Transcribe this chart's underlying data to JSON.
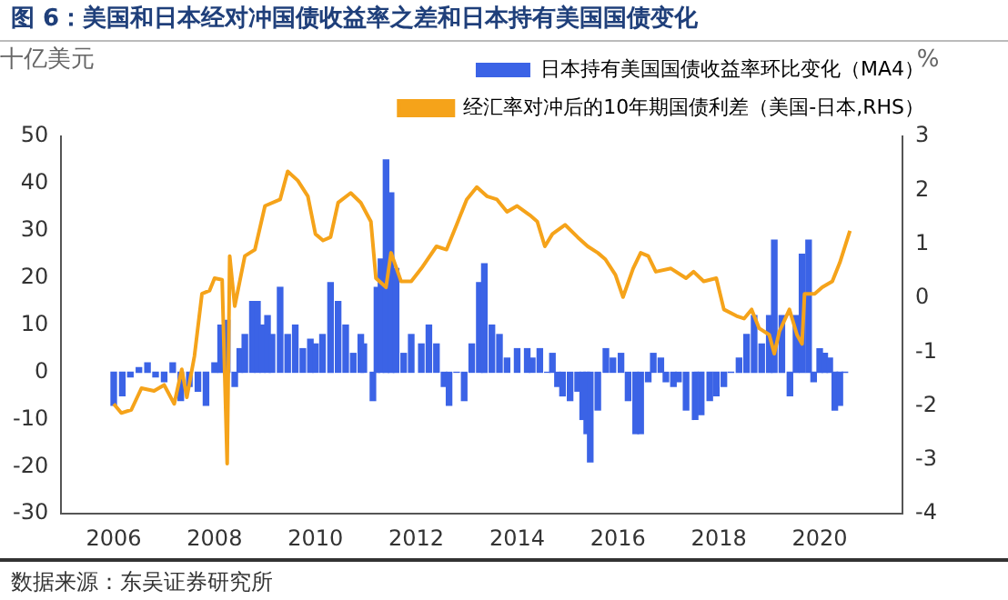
{
  "chart_data": {
    "type": "bar",
    "title": "图 6：美国和日本经对冲国债收益率之差和日本持有美国国债变化",
    "ylabel": "十亿美元",
    "y2label": "%",
    "annotations": [
      "数据来源：东吴证券研究所"
    ],
    "xlim": [
      2006,
      2020.6
    ],
    "xticks": [
      2006,
      2008,
      2010,
      2012,
      2014,
      2016,
      2018,
      2020
    ],
    "ylim": [
      -30,
      50
    ],
    "yticks": [
      -30,
      -20,
      -10,
      0,
      10,
      20,
      30,
      40,
      50
    ],
    "y2lim": [
      -4,
      3
    ],
    "y2ticks": [
      -4,
      -3,
      -2,
      -1,
      0,
      1,
      2,
      3
    ],
    "grid": false,
    "legend": "top",
    "series": [
      {
        "name": "日本持有美国国债收益率环比变化（MA4）",
        "color": "#3b63e6",
        "x": [
          2006.0,
          2006.17,
          2006.33,
          2006.5,
          2006.67,
          2006.83,
          2007.0,
          2007.17,
          2007.33,
          2007.5,
          2007.67,
          2007.83,
          2008.0,
          2008.12,
          2008.25,
          2008.4,
          2008.5,
          2008.6,
          2008.75,
          2008.85,
          2008.95,
          2009.05,
          2009.14,
          2009.3,
          2009.45,
          2009.6,
          2009.75,
          2009.9,
          2010.0,
          2010.14,
          2010.3,
          2010.45,
          2010.6,
          2010.75,
          2010.9,
          2010.96,
          2011.14,
          2011.22,
          2011.3,
          2011.4,
          2011.5,
          2011.6,
          2011.75,
          2011.9,
          2012.1,
          2012.25,
          2012.4,
          2012.55,
          2012.65,
          2012.8,
          2012.95,
          2013.1,
          2013.25,
          2013.35,
          2013.5,
          2013.65,
          2013.8,
          2014.0,
          2014.2,
          2014.3,
          2014.45,
          2014.6,
          2014.7,
          2014.8,
          2014.9,
          2015.05,
          2015.2,
          2015.3,
          2015.38,
          2015.45,
          2015.6,
          2015.76,
          2015.9,
          2016.06,
          2016.2,
          2016.35,
          2016.45,
          2016.6,
          2016.7,
          2016.85,
          2016.95,
          2017.1,
          2017.2,
          2017.35,
          2017.53,
          2017.65,
          2017.82,
          2017.95,
          2018.1,
          2018.24,
          2018.4,
          2018.55,
          2018.7,
          2018.85,
          2019.0,
          2019.1,
          2019.25,
          2019.41,
          2019.53,
          2019.65,
          2019.78,
          2019.88,
          2020.0,
          2020.1,
          2020.2,
          2020.3,
          2020.4,
          2020.5
        ],
        "values": [
          -7,
          -5,
          -1,
          1,
          2,
          -1,
          -2,
          2,
          -6,
          -3,
          -4,
          -7,
          2,
          10,
          11,
          -3,
          5,
          8,
          15,
          15,
          10,
          12,
          8,
          18,
          8,
          10,
          5,
          7,
          6,
          8,
          19,
          15,
          10,
          4,
          8,
          6,
          -6,
          18,
          24,
          45,
          38,
          22,
          4,
          8,
          6,
          10,
          6,
          -3,
          -7,
          0,
          -6,
          6,
          19,
          23,
          10,
          8,
          3,
          5,
          5,
          3,
          5,
          0,
          4,
          -3,
          -5,
          -6,
          -4,
          -10,
          -13,
          -19,
          -8,
          5,
          3,
          4,
          -6,
          -13,
          -13,
          -2,
          4,
          3,
          -2,
          -3,
          -2,
          -8,
          -10,
          -9,
          -6,
          -5,
          -3,
          0,
          3,
          8,
          12,
          6,
          12,
          28,
          12,
          -5,
          12,
          25,
          28,
          -2,
          5,
          4,
          3,
          -8,
          -7,
          0
        ]
      },
      {
        "name": "经汇率对冲后的10年期国债利差（美国-日本,RHS）",
        "type": "line",
        "axis": "y2",
        "color": "#f5a31a",
        "x": [
          2006.0,
          2006.15,
          2006.35,
          2006.55,
          2006.8,
          2007.0,
          2007.2,
          2007.35,
          2007.45,
          2007.6,
          2007.75,
          2007.9,
          2008.0,
          2008.15,
          2008.25,
          2008.3,
          2008.4,
          2008.6,
          2008.8,
          2009.0,
          2009.3,
          2009.45,
          2009.65,
          2009.85,
          2010.0,
          2010.15,
          2010.3,
          2010.45,
          2010.7,
          2010.9,
          2011.1,
          2011.2,
          2011.4,
          2011.5,
          2011.7,
          2011.9,
          2012.1,
          2012.4,
          2012.6,
          2012.8,
          2013.0,
          2013.2,
          2013.4,
          2013.6,
          2013.8,
          2014.0,
          2014.25,
          2014.4,
          2014.55,
          2014.7,
          2014.95,
          2015.2,
          2015.4,
          2015.6,
          2015.75,
          2015.95,
          2016.1,
          2016.3,
          2016.45,
          2016.6,
          2016.75,
          2017.05,
          2017.35,
          2017.5,
          2017.7,
          2017.95,
          2018.1,
          2018.35,
          2018.5,
          2018.65,
          2018.8,
          2019.0,
          2019.1,
          2019.2,
          2019.4,
          2019.55,
          2019.65,
          2019.7,
          2019.9,
          2020.05,
          2020.25,
          2020.4,
          2020.6
        ],
        "values": [
          -1.96,
          -2.13,
          -2.07,
          -1.67,
          -1.72,
          -1.61,
          -1.96,
          -1.32,
          -1.84,
          -1.08,
          0.08,
          0.14,
          0.37,
          0.34,
          -3.07,
          0.78,
          -0.15,
          0.78,
          0.9,
          1.71,
          1.83,
          2.35,
          2.18,
          1.89,
          1.19,
          1.07,
          1.13,
          1.77,
          1.95,
          1.77,
          1.42,
          0.37,
          0.2,
          0.84,
          0.31,
          0.31,
          0.55,
          0.96,
          0.9,
          1.36,
          1.83,
          2.06,
          1.89,
          1.83,
          1.6,
          1.71,
          1.54,
          1.42,
          0.96,
          1.19,
          1.36,
          1.13,
          0.96,
          0.84,
          0.72,
          0.43,
          0.02,
          0.55,
          0.84,
          0.78,
          0.49,
          0.55,
          0.37,
          0.49,
          0.31,
          0.37,
          -0.21,
          -0.33,
          -0.38,
          -0.21,
          -0.56,
          -0.68,
          -1.03,
          -0.62,
          -0.21,
          -0.68,
          -0.85,
          0.08,
          0.08,
          0.2,
          0.31,
          0.66,
          1.25
        ]
      }
    ]
  }
}
